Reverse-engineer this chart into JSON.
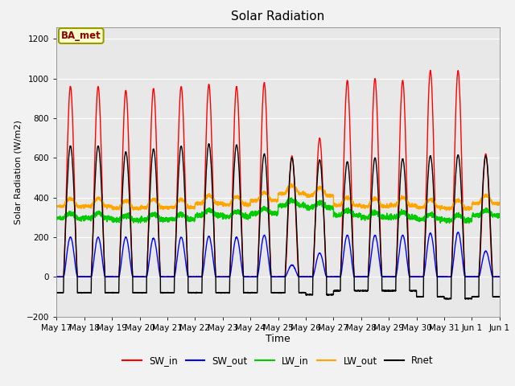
{
  "title": "Solar Radiation",
  "xlabel": "Time",
  "ylabel": "Solar Radiation (W/m2)",
  "ylim": [
    -200,
    1260
  ],
  "yticks": [
    -200,
    0,
    200,
    400,
    600,
    800,
    1000,
    1200
  ],
  "annotation_text": "BA_met",
  "annotation_color": "#8B0000",
  "annotation_bg": "#FFFFCC",
  "annotation_border": "#999900",
  "series": {
    "SW_in": {
      "color": "red",
      "lw": 1.0
    },
    "SW_out": {
      "color": "blue",
      "lw": 1.0
    },
    "LW_in": {
      "color": "#00CC00",
      "lw": 1.0
    },
    "LW_out": {
      "color": "orange",
      "lw": 1.0
    },
    "Rnet": {
      "color": "black",
      "lw": 1.0
    }
  },
  "n_days": 16,
  "pts_per_day": 288,
  "fig_bg": "#F2F2F2",
  "plot_bg": "#E8E8E8",
  "SW_in_peaks": [
    960,
    960,
    940,
    950,
    960,
    970,
    960,
    980,
    610,
    700,
    990,
    1000,
    990,
    1040,
    1040,
    620
  ],
  "SW_out_peaks": [
    200,
    200,
    200,
    195,
    200,
    205,
    200,
    210,
    60,
    120,
    210,
    210,
    210,
    220,
    225,
    130
  ],
  "LW_in_base": [
    295,
    295,
    285,
    290,
    290,
    310,
    305,
    320,
    360,
    350,
    310,
    300,
    300,
    290,
    285,
    310
  ],
  "LW_out_base": [
    355,
    355,
    345,
    350,
    350,
    370,
    365,
    385,
    420,
    410,
    360,
    355,
    360,
    350,
    345,
    370
  ],
  "Rnet_peaks": [
    660,
    660,
    630,
    645,
    660,
    670,
    665,
    620,
    600,
    590,
    580,
    600,
    595,
    610,
    615,
    610
  ],
  "Rnet_night": [
    -80,
    -80,
    -80,
    -80,
    -80,
    -80,
    -80,
    -80,
    -80,
    -90,
    -70,
    -70,
    -70,
    -100,
    -110,
    -100
  ],
  "tick_labels": [
    "May 17",
    "May 18",
    "May 19",
    "May 20",
    "May 21",
    "May 22",
    "May 23",
    "May 24",
    "May 25",
    "May 26",
    "May 27",
    "May 28",
    "May 29",
    "May 30",
    "May 31",
    "Jun 1"
  ]
}
